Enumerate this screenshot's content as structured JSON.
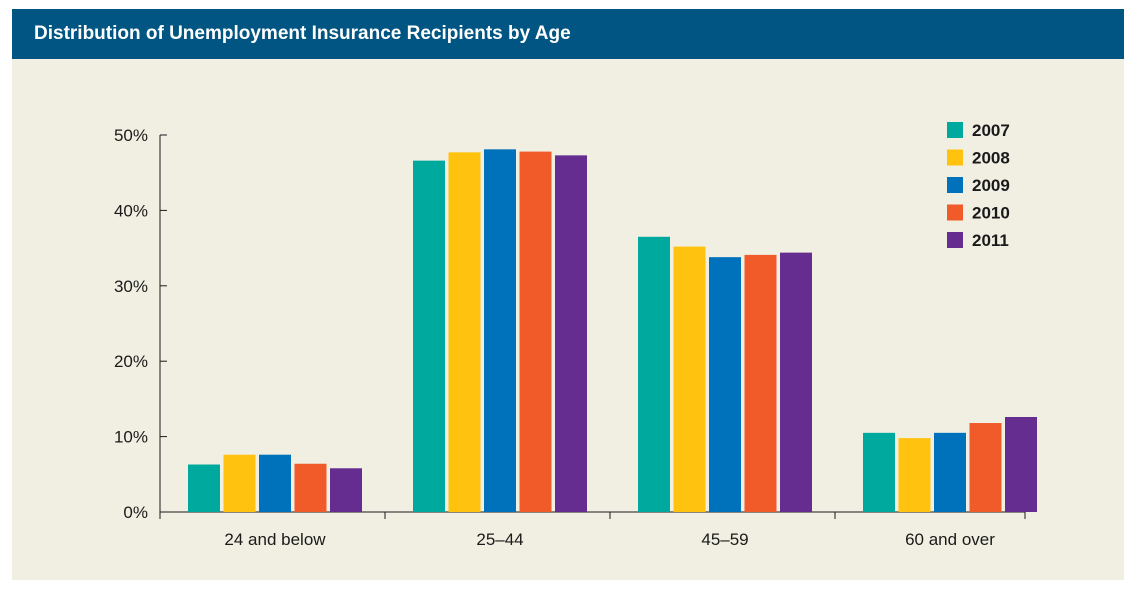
{
  "chart_data": {
    "type": "bar",
    "title": "Distribution of Unemployment Insurance Recipients by Age",
    "categories": [
      "24 and below",
      "25–44",
      "45–59",
      "60 and over"
    ],
    "series": [
      {
        "name": "2007",
        "color": "#00a99d",
        "values": [
          6.3,
          46.6,
          36.5,
          10.5
        ]
      },
      {
        "name": "2008",
        "color": "#ffc20e",
        "values": [
          7.6,
          47.7,
          35.2,
          9.8
        ]
      },
      {
        "name": "2009",
        "color": "#0072bc",
        "values": [
          7.6,
          48.1,
          33.8,
          10.5
        ]
      },
      {
        "name": "2010",
        "color": "#f15a29",
        "values": [
          6.4,
          47.8,
          34.1,
          11.8
        ]
      },
      {
        "name": "2011",
        "color": "#662d91",
        "values": [
          5.8,
          47.3,
          34.4,
          12.6
        ]
      }
    ],
    "y_ticks": [
      "0%",
      "10%",
      "20%",
      "30%",
      "40%",
      "50%"
    ],
    "ylim": [
      0,
      50
    ],
    "xlabel": "",
    "ylabel": "",
    "legend_position": "top-right",
    "grid": false
  },
  "colors": {
    "header_bg": "#005582",
    "panel_bg": "#f1efe2",
    "axis": "#1a1a1a"
  }
}
